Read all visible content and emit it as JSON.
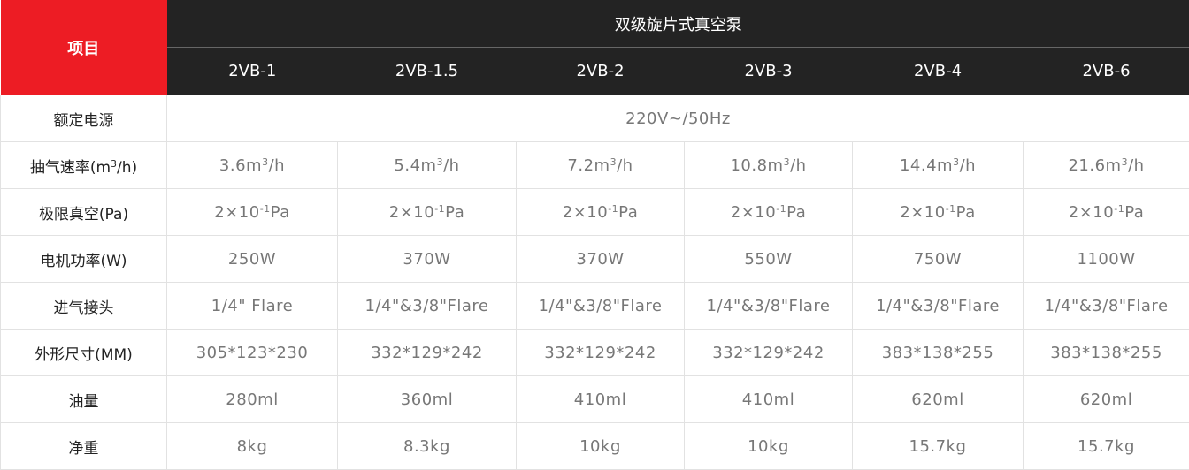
{
  "header": {
    "item_label": "项目",
    "title": "双级旋片式真空泵",
    "models": [
      "2VB-1",
      "2VB-1.5",
      "2VB-2",
      "2VB-3",
      "2VB-4",
      "2VB-6"
    ]
  },
  "colors": {
    "accent": "#ed1c24",
    "header_bg": "#232323",
    "text": "#777777",
    "label_text": "#222222",
    "border": "#e2e2e2"
  },
  "rows": [
    {
      "label": "额定电源",
      "span_value": "220V~/50Hz"
    },
    {
      "label": {
        "pre": "抽气速率(m",
        "sup": "3",
        "post": "/h)"
      },
      "cells": [
        {
          "pre": "3.6m",
          "sup": "3",
          "post": "/h"
        },
        {
          "pre": "5.4m",
          "sup": "3",
          "post": "/h"
        },
        {
          "pre": "7.2m",
          "sup": "3",
          "post": "/h"
        },
        {
          "pre": "10.8m",
          "sup": "3",
          "post": "/h"
        },
        {
          "pre": "14.4m",
          "sup": "3",
          "post": "/h"
        },
        {
          "pre": "21.6m",
          "sup": "3",
          "post": "/h"
        }
      ]
    },
    {
      "label": "极限真空(Pa)",
      "cells": [
        {
          "pre": "2×10",
          "sup": "-1",
          "post": "Pa"
        },
        {
          "pre": "2×10",
          "sup": "-1",
          "post": "Pa"
        },
        {
          "pre": "2×10",
          "sup": "-1",
          "post": "Pa"
        },
        {
          "pre": "2×10",
          "sup": "-1",
          "post": "Pa"
        },
        {
          "pre": "2×10",
          "sup": "-1",
          "post": "Pa"
        },
        {
          "pre": "2×10",
          "sup": "-1",
          "post": "Pa"
        }
      ]
    },
    {
      "label": "电机功率(W)",
      "cells": [
        "250W",
        "370W",
        "370W",
        "550W",
        "750W",
        "1100W"
      ]
    },
    {
      "label": "进气接头",
      "cells": [
        "1/4\" Flare",
        "1/4\"&3/8\"Flare",
        "1/4\"&3/8\"Flare",
        "1/4\"&3/8\"Flare",
        "1/4\"&3/8\"Flare",
        "1/4\"&3/8\"Flare"
      ]
    },
    {
      "label": "外形尺寸(MM)",
      "cells": [
        "305*123*230",
        "332*129*242",
        "332*129*242",
        "332*129*242",
        "383*138*255",
        "383*138*255"
      ]
    },
    {
      "label": "油量",
      "cells": [
        "280ml",
        "360ml",
        "410ml",
        "410ml",
        "620ml",
        "620ml"
      ]
    },
    {
      "label": "净重",
      "cells": [
        "8kg",
        "8.3kg",
        "10kg",
        "10kg",
        "15.7kg",
        "15.7kg"
      ]
    }
  ]
}
